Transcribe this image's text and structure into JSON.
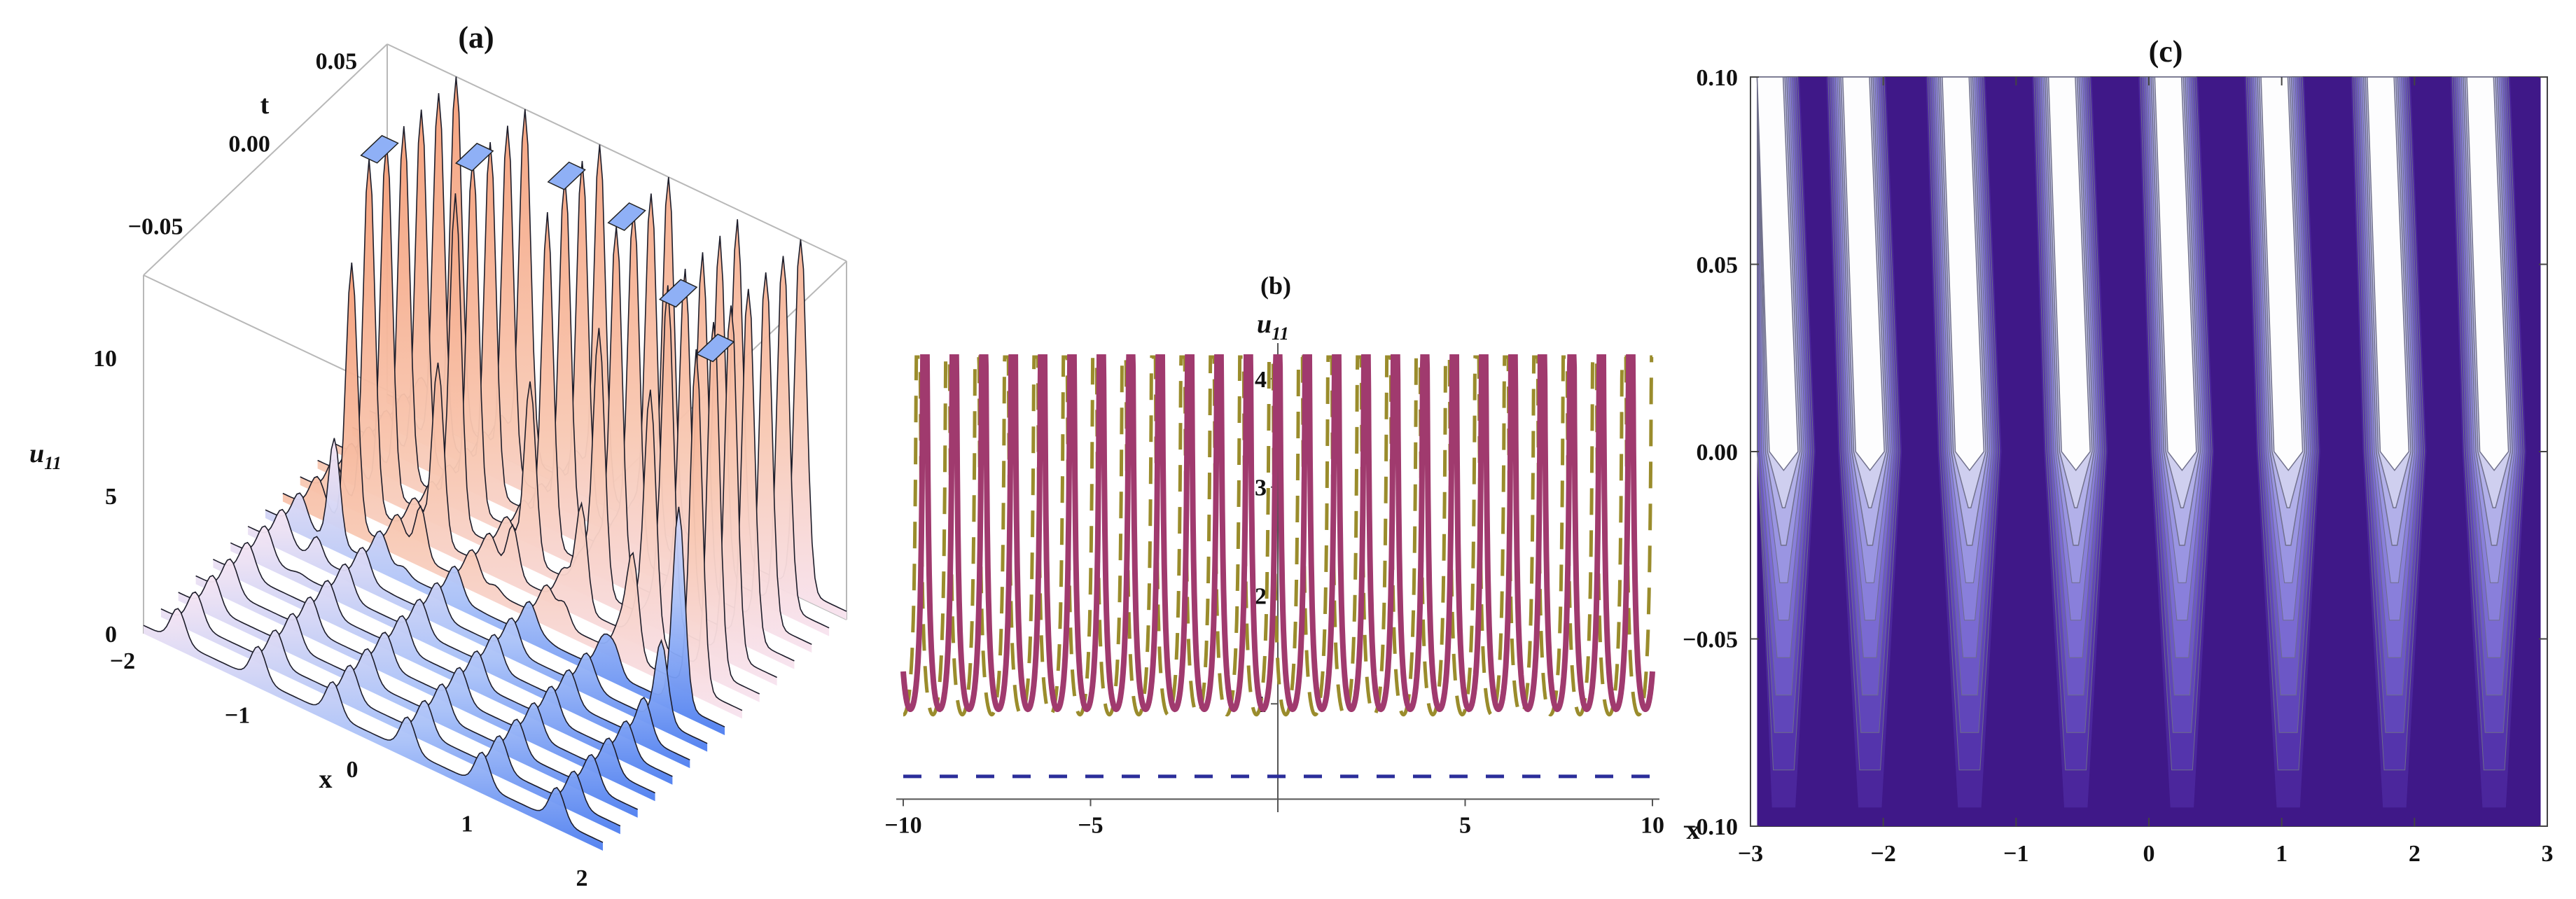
{
  "chart_data": [
    {
      "panel": "a",
      "type": "surface3d",
      "title": "(a)",
      "xlabel": "x",
      "ylabel": "t",
      "zlabel": "u",
      "zlabel_sub": "11",
      "x_ticks": [
        "−2",
        "−1",
        "0",
        "1",
        "2"
      ],
      "y_ticks": [
        "−0.05",
        "0.00",
        "0.05"
      ],
      "z_ticks": [
        "0",
        "5",
        "10"
      ],
      "xlim": [
        -2,
        2
      ],
      "ylim": [
        -0.08,
        0.06
      ],
      "zlim": [
        0,
        13
      ],
      "base_peak_x": [
        -1.7,
        -1.0,
        -0.35,
        0.3,
        0.95,
        1.6
      ],
      "spike_peaks": [
        {
          "x": -1.4,
          "t": 0.01,
          "z": 13
        },
        {
          "x": -0.8,
          "t": 0.025,
          "z": 13
        },
        {
          "x": -0.15,
          "t": 0.035,
          "z": 13
        },
        {
          "x": 0.45,
          "t": 0.03,
          "z": 13
        },
        {
          "x": 1.05,
          "t": 0.02,
          "z": 12
        },
        {
          "x": 1.6,
          "t": 0.005,
          "z": 12
        }
      ],
      "colors": {
        "low": "#5b87f0",
        "mid": "#f7e0f2",
        "high": "#f2a27c",
        "cap": "#8fb0f6"
      }
    },
    {
      "panel": "b",
      "type": "line",
      "title": "(b)",
      "xlabel": "x",
      "ylabel": "u",
      "ylabel_sub": "11",
      "x_ticks": [
        -10,
        -5,
        5,
        10
      ],
      "y_ticks": [
        1,
        2,
        3,
        4
      ],
      "xlim": [
        -10,
        10
      ],
      "ylim": [
        0,
        4.2
      ],
      "period": 0.785,
      "series": [
        {
          "style": "solid",
          "color": "#a03a6e",
          "min": 0.95,
          "max": 4.2
        },
        {
          "style": "long-dash",
          "color": "#9a8c2c",
          "min": 0.9,
          "max": 4.2
        },
        {
          "style": "short-dash",
          "color": "#2b2e9a",
          "value": 0.33
        }
      ]
    },
    {
      "panel": "c",
      "type": "contour",
      "title": "(c)",
      "x_ticks": [
        "−3",
        "−2",
        "−1",
        "0",
        "1",
        "2",
        "3"
      ],
      "y_ticks": [
        "−0.10",
        "−0.05",
        "0.00",
        "0.05",
        "0.10"
      ],
      "xlim": [
        -3,
        3
      ],
      "ylim": [
        -0.1,
        0.1
      ],
      "ridge_x": [
        -3.0,
        -2.35,
        -1.6,
        -0.8,
        0.0,
        0.8,
        1.6,
        2.35
      ],
      "colors": {
        "low": "#3f1888",
        "mid": "#6b52c4",
        "light": "#8e84e0",
        "high": "#ffffff",
        "edge": "#5f5f70"
      }
    }
  ]
}
